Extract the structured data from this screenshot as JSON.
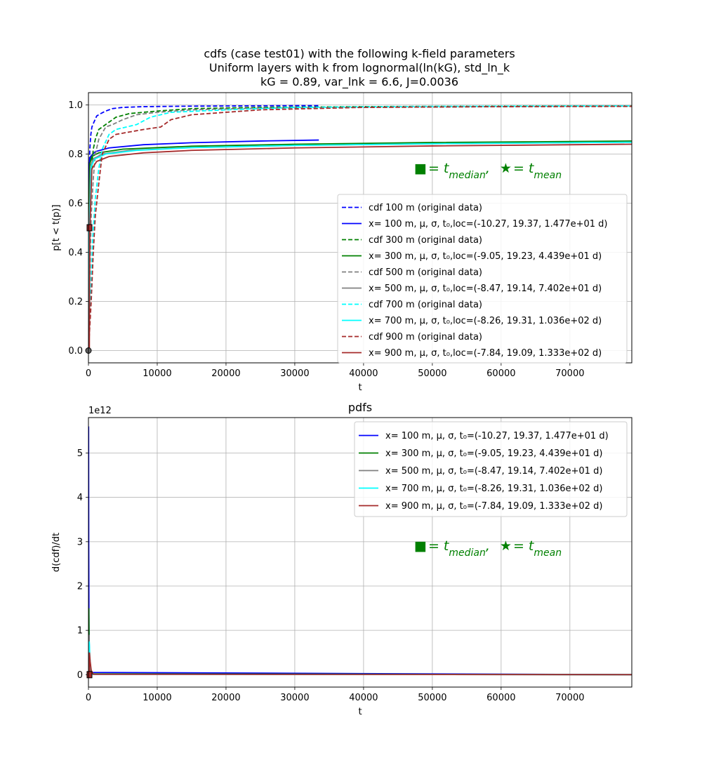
{
  "chart_data": [
    {
      "type": "line",
      "title_lines": [
        "cdfs (case test01) with the following k-field parameters",
        "Uniform layers with k from lognormal(ln(kG), std_ln_k",
        "kG = 0.89, var_lnk = 6.6, J=0.0036"
      ],
      "xlabel": "t",
      "ylabel": "p[t < t(p)]",
      "xlim": [
        0,
        79000
      ],
      "ylim": [
        -0.05,
        1.05
      ],
      "xticks": [
        0,
        10000,
        20000,
        30000,
        40000,
        50000,
        60000,
        70000
      ],
      "yticks": [
        0.0,
        0.2,
        0.4,
        0.6,
        0.8,
        1.0
      ],
      "ytick_labels": [
        "0.0",
        "0.2",
        "0.4",
        "0.6",
        "0.8",
        "1.0"
      ],
      "grid": true,
      "legend_position": "center-right",
      "annotation": {
        "square": "■",
        "median_text": "= t",
        "median_sub": "median",
        "sep": ",",
        "star": "★",
        "mean_text": "= t",
        "mean_sub": "mean",
        "color": "#008000"
      },
      "series": [
        {
          "name": "cdf 100 m (original data)",
          "color": "#0000ff",
          "dash": true,
          "x": [
            0,
            50,
            100,
            200,
            350,
            500,
            800,
            1200,
            1800,
            2500,
            3500,
            5000,
            8000,
            15000,
            30000,
            33500
          ],
          "y": [
            0,
            0.45,
            0.7,
            0.82,
            0.88,
            0.91,
            0.93,
            0.955,
            0.965,
            0.975,
            0.985,
            0.99,
            0.993,
            0.995,
            0.997,
            0.997
          ]
        },
        {
          "name": "x= 100 m, μ, σ, t₀,loc=(-10.27, 19.37, 1.477e+01 d)",
          "color": "#0000ff",
          "dash": false,
          "x": [
            0,
            14,
            30,
            100,
            300,
            1000,
            3000,
            8000,
            15000,
            25000,
            33500
          ],
          "y": [
            0,
            0.0,
            0.5,
            0.76,
            0.79,
            0.81,
            0.825,
            0.838,
            0.846,
            0.853,
            0.857
          ]
        },
        {
          "name": "cdf 300 m (original data)",
          "color": "#008000",
          "dash": true,
          "x": [
            0,
            100,
            200,
            400,
            700,
            1000,
            1500,
            2000,
            3000,
            4000,
            6000,
            10000,
            15000,
            25000,
            40000,
            60000,
            79000
          ],
          "y": [
            0,
            0.3,
            0.55,
            0.72,
            0.82,
            0.86,
            0.9,
            0.91,
            0.93,
            0.95,
            0.965,
            0.975,
            0.985,
            0.99,
            0.993,
            0.995,
            0.996
          ]
        },
        {
          "name": "x= 300 m, μ, σ, t₀,loc=(-9.05, 19.23, 4.439e+01 d)",
          "color": "#008000",
          "dash": false,
          "x": [
            0,
            44,
            80,
            200,
            500,
            1500,
            5000,
            15000,
            30000,
            50000,
            79000
          ],
          "y": [
            0,
            0.0,
            0.5,
            0.76,
            0.79,
            0.805,
            0.82,
            0.832,
            0.84,
            0.847,
            0.853
          ]
        },
        {
          "name": "cdf 500 m (original data)",
          "color": "#808080",
          "dash": true,
          "x": [
            0,
            200,
            400,
            700,
            1000,
            1500,
            2500,
            3500,
            5000,
            7000,
            10000,
            15000,
            25000,
            40000,
            60000,
            79000
          ],
          "y": [
            0,
            0.3,
            0.55,
            0.7,
            0.8,
            0.86,
            0.91,
            0.92,
            0.94,
            0.96,
            0.97,
            0.98,
            0.987,
            0.99,
            0.993,
            0.995
          ]
        },
        {
          "name": "x= 500 m, μ, σ, t₀,loc=(-8.47, 19.14, 7.402e+01 d)",
          "color": "#808080",
          "dash": false,
          "x": [
            0,
            74,
            120,
            300,
            700,
            2000,
            6000,
            15000,
            30000,
            50000,
            79000
          ],
          "y": [
            0,
            0.0,
            0.5,
            0.75,
            0.78,
            0.8,
            0.815,
            0.826,
            0.835,
            0.842,
            0.848
          ]
        },
        {
          "name": "cdf 700 m (original data)",
          "color": "#00ffff",
          "dash": true,
          "x": [
            0,
            300,
            600,
            1000,
            1500,
            2000,
            3000,
            4000,
            5500,
            7000,
            9000,
            12000,
            20000,
            30000,
            50000,
            79000
          ],
          "y": [
            0,
            0.2,
            0.45,
            0.62,
            0.74,
            0.82,
            0.88,
            0.9,
            0.91,
            0.92,
            0.95,
            0.97,
            0.98,
            0.99,
            0.994,
            0.996
          ]
        },
        {
          "name": "x= 700 m, μ, σ, t₀,loc=(-8.26, 19.31, 1.036e+02 d)",
          "color": "#00ffff",
          "dash": false,
          "x": [
            0,
            104,
            160,
            400,
            900,
            2500,
            7000,
            15000,
            30000,
            50000,
            79000
          ],
          "y": [
            0,
            0.0,
            0.5,
            0.75,
            0.78,
            0.8,
            0.815,
            0.826,
            0.835,
            0.842,
            0.848
          ]
        },
        {
          "name": "cdf 900 m (original data)",
          "color": "#a52a2a",
          "dash": true,
          "x": [
            0,
            400,
            700,
            1000,
            1500,
            2000,
            3000,
            4000,
            6000,
            8000,
            10500,
            12000,
            15000,
            25000,
            40000,
            60000,
            79000
          ],
          "y": [
            0,
            0.2,
            0.4,
            0.55,
            0.68,
            0.8,
            0.86,
            0.88,
            0.89,
            0.9,
            0.91,
            0.94,
            0.96,
            0.98,
            0.99,
            0.993,
            0.994
          ]
        },
        {
          "name": "x= 900 m, μ, σ, t₀,loc=(-7.84, 19.09, 1.333e+02 d)",
          "color": "#a52a2a",
          "dash": false,
          "x": [
            0,
            133,
            200,
            500,
            1200,
            3000,
            8000,
            15000,
            30000,
            50000,
            79000
          ],
          "y": [
            0,
            0.0,
            0.5,
            0.74,
            0.77,
            0.79,
            0.805,
            0.815,
            0.825,
            0.833,
            0.84
          ]
        }
      ],
      "markers": {
        "median_squares": [
          {
            "x": 150,
            "y": 0.5
          }
        ],
        "zero_circles": [
          {
            "x": 0,
            "y": 0
          }
        ]
      }
    },
    {
      "type": "line",
      "title": "pdfs",
      "xlabel": "t",
      "ylabel": "d(cdf)/dt",
      "offset_text": "1e12",
      "xlim": [
        0,
        79000
      ],
      "ylim": [
        -0.28,
        5.8
      ],
      "xticks": [
        0,
        10000,
        20000,
        30000,
        40000,
        50000,
        60000,
        70000
      ],
      "yticks": [
        0,
        1,
        2,
        3,
        4,
        5
      ],
      "grid": true,
      "legend_position": "upper right",
      "annotation": {
        "square": "■",
        "median_text": "= t",
        "median_sub": "median",
        "sep": ",",
        "star": "★",
        "mean_text": "= t",
        "mean_sub": "mean",
        "color": "#008000"
      },
      "series": [
        {
          "name": "x= 100 m, μ, σ, t₀=(-10.27, 19.37, 1.477e+01 d)",
          "color": "#0000ff",
          "x": [
            0,
            15,
            20,
            40,
            80,
            200,
            79000
          ],
          "y": [
            0,
            0,
            5.6,
            3.0,
            1.0,
            0.05,
            0
          ]
        },
        {
          "name": "x= 300 m, μ, σ, t₀=(-9.05, 19.23, 4.439e+01 d)",
          "color": "#008000",
          "x": [
            0,
            44,
            55,
            90,
            150,
            300,
            79000
          ],
          "y": [
            0,
            0,
            1.5,
            0.8,
            0.3,
            0.02,
            0
          ]
        },
        {
          "name": "x= 500 m, μ, σ, t₀=(-8.47, 19.14, 7.402e+01 d)",
          "color": "#808080",
          "x": [
            0,
            74,
            90,
            140,
            220,
            400,
            79000
          ],
          "y": [
            0,
            0,
            0.9,
            0.5,
            0.2,
            0.01,
            0
          ]
        },
        {
          "name": "x= 700 m, μ, σ, t₀=(-8.26, 19.31, 1.036e+02 d)",
          "color": "#00ffff",
          "x": [
            0,
            104,
            120,
            200,
            320,
            550,
            79000
          ],
          "y": [
            0,
            0,
            0.75,
            0.4,
            0.15,
            0.01,
            0
          ]
        },
        {
          "name": "x= 900 m, μ, σ, t₀=(-7.84, 19.09, 1.333e+02 d)",
          "color": "#a52a2a",
          "x": [
            0,
            133,
            150,
            250,
            400,
            700,
            79000
          ],
          "y": [
            0,
            0,
            0.5,
            0.3,
            0.1,
            0.01,
            0
          ]
        }
      ],
      "markers": {
        "median_squares": [
          {
            "x": 150,
            "y": 0
          }
        ]
      }
    }
  ]
}
